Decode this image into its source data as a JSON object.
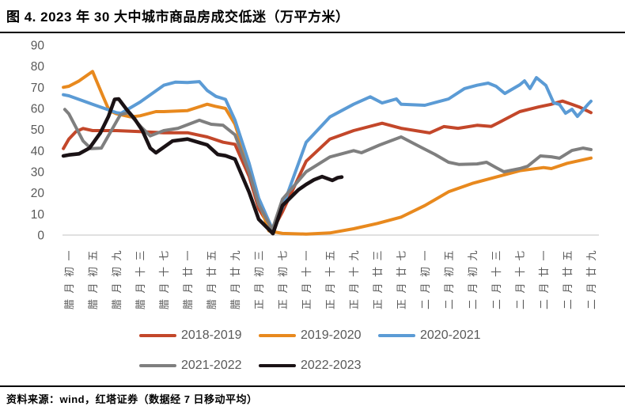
{
  "title": "图 4. 2023 年 30 大中城市商品房成交低迷（万平方米）",
  "source": "资料来源：wind，红塔证券（数据经 7 日移动平均）",
  "chart_data": {
    "type": "line",
    "unit": "万平方米",
    "ylim": [
      0,
      90
    ],
    "yticks": [
      0,
      10,
      20,
      30,
      40,
      50,
      60,
      70,
      80,
      90
    ],
    "grid": "baseline-only",
    "legend_position": "bottom",
    "x_axis_label_rotation": -90,
    "tick_label_color": "#595959",
    "baseline_color": "#D6D6D6",
    "categories": [
      "腊月初一",
      "腊月初五",
      "腊月初九",
      "腊月十三",
      "腊月十七",
      "腊月廿一",
      "腊月廿五",
      "腊月廿九",
      "正月初三",
      "正月初七",
      "正月十一",
      "正月十五",
      "正月十九",
      "正月廿三",
      "正月廿七",
      "二月初一",
      "二月初五",
      "二月初九",
      "二月十三",
      "二月十七",
      "二月廿一",
      "二月廿五",
      "二月廿九"
    ],
    "series": [
      {
        "name": "2018-2019",
        "color": "#C3472A",
        "line_width": 4,
        "points": [
          [
            -0.23,
            41
          ],
          [
            0,
            45.5
          ],
          [
            0.3,
            49
          ],
          [
            0.6,
            50.5
          ],
          [
            1,
            49.5
          ],
          [
            2,
            49.5
          ],
          [
            3,
            49
          ],
          [
            4,
            48.5
          ],
          [
            5,
            48.5
          ],
          [
            5.83,
            46.5
          ],
          [
            6.5,
            44
          ],
          [
            7,
            43
          ],
          [
            7.6,
            27.7
          ],
          [
            8,
            12.5
          ],
          [
            8.57,
            2
          ],
          [
            9,
            11
          ],
          [
            10,
            35
          ],
          [
            11,
            45.5
          ],
          [
            12,
            49.5
          ],
          [
            13.2,
            53
          ],
          [
            14,
            50.6
          ],
          [
            15.2,
            48.4
          ],
          [
            15.8,
            51.4
          ],
          [
            16.4,
            50.6
          ],
          [
            17.2,
            52
          ],
          [
            17.8,
            51.5
          ],
          [
            18.1,
            53.2
          ],
          [
            19,
            58.5
          ],
          [
            19.8,
            60.7
          ],
          [
            20.3,
            61.9
          ],
          [
            20.8,
            63.5
          ],
          [
            21.2,
            61.9
          ],
          [
            21.5,
            60.7
          ],
          [
            22,
            58
          ]
        ]
      },
      {
        "name": "2019-2020",
        "color": "#E8891E",
        "line_width": 4,
        "points": [
          [
            -0.23,
            70
          ],
          [
            0,
            70.5
          ],
          [
            0.43,
            73
          ],
          [
            1,
            77.5
          ],
          [
            1.43,
            66
          ],
          [
            1.7,
            59
          ],
          [
            2,
            57.5
          ],
          [
            2.6,
            56
          ],
          [
            3,
            56.5
          ],
          [
            3.67,
            58.5
          ],
          [
            4,
            58.5
          ],
          [
            5,
            59
          ],
          [
            5.83,
            62
          ],
          [
            6.17,
            61
          ],
          [
            6.6,
            60
          ],
          [
            7,
            52.5
          ],
          [
            7.6,
            31.5
          ],
          [
            8,
            16
          ],
          [
            8.43,
            2
          ],
          [
            9,
            0.8
          ],
          [
            10,
            0.5
          ],
          [
            11,
            1
          ],
          [
            12,
            3
          ],
          [
            13,
            5.5
          ],
          [
            14,
            8.5
          ],
          [
            15,
            14
          ],
          [
            16,
            20.5
          ],
          [
            17,
            24.5
          ],
          [
            18,
            27.5
          ],
          [
            19,
            30.5
          ],
          [
            20,
            32
          ],
          [
            20.33,
            31.5
          ],
          [
            21,
            34
          ],
          [
            22,
            36.5
          ]
        ]
      },
      {
        "name": "2020-2021",
        "color": "#5B9BD5",
        "line_width": 4,
        "points": [
          [
            -0.23,
            66.5
          ],
          [
            0,
            66
          ],
          [
            1,
            62
          ],
          [
            2,
            58
          ],
          [
            2.2,
            57.7
          ],
          [
            3,
            63
          ],
          [
            4,
            71
          ],
          [
            4.5,
            72.5
          ],
          [
            5,
            72.3
          ],
          [
            5.5,
            72.7
          ],
          [
            5.83,
            68.5
          ],
          [
            6.2,
            65.7
          ],
          [
            6.6,
            64.3
          ],
          [
            7,
            54.5
          ],
          [
            7.6,
            33.9
          ],
          [
            8,
            17.5
          ],
          [
            8.57,
            3
          ],
          [
            9,
            13
          ],
          [
            10,
            44
          ],
          [
            11,
            56
          ],
          [
            11.5,
            59
          ],
          [
            12,
            62
          ],
          [
            12.7,
            65.5
          ],
          [
            13.2,
            62.6
          ],
          [
            13.8,
            64.5
          ],
          [
            14,
            62
          ],
          [
            15,
            61.5
          ],
          [
            16,
            64.5
          ],
          [
            16.67,
            69.4
          ],
          [
            17.2,
            71
          ],
          [
            17.67,
            72
          ],
          [
            18,
            70.5
          ],
          [
            18.37,
            67.1
          ],
          [
            19,
            71.2
          ],
          [
            19.2,
            73.1
          ],
          [
            19.43,
            69.4
          ],
          [
            19.7,
            74.6
          ],
          [
            20.1,
            70.9
          ],
          [
            20.43,
            62.6
          ],
          [
            20.67,
            61.9
          ],
          [
            20.93,
            57.7
          ],
          [
            21.2,
            59.6
          ],
          [
            21.43,
            56.2
          ],
          [
            21.87,
            61.9
          ],
          [
            22,
            63.4
          ]
        ]
      },
      {
        "name": "2021-2022",
        "color": "#7F7F7F",
        "line_width": 4,
        "points": [
          [
            -0.17,
            59.5
          ],
          [
            0,
            57.5
          ],
          [
            0.6,
            44.6
          ],
          [
            0.93,
            41
          ],
          [
            1.37,
            41.2
          ],
          [
            2.17,
            57
          ],
          [
            2.5,
            58
          ],
          [
            3.03,
            51.4
          ],
          [
            3.43,
            47
          ],
          [
            4,
            49.5
          ],
          [
            4.6,
            50.6
          ],
          [
            5.5,
            54.4
          ],
          [
            6,
            52.5
          ],
          [
            6.5,
            52
          ],
          [
            7,
            47.5
          ],
          [
            7.6,
            29.6
          ],
          [
            8,
            14.5
          ],
          [
            8.57,
            2.5
          ],
          [
            9,
            17
          ],
          [
            10,
            30
          ],
          [
            11,
            37
          ],
          [
            11.5,
            38.5
          ],
          [
            12,
            40
          ],
          [
            12.33,
            39
          ],
          [
            13.1,
            42.7
          ],
          [
            14,
            46.5
          ],
          [
            14.77,
            42
          ],
          [
            15.43,
            38.2
          ],
          [
            16,
            34.5
          ],
          [
            16.43,
            33.5
          ],
          [
            17.2,
            33.7
          ],
          [
            17.6,
            34.5
          ],
          [
            18,
            32
          ],
          [
            18.33,
            30
          ],
          [
            19,
            31.5
          ],
          [
            19.33,
            32.6
          ],
          [
            19.87,
            37.5
          ],
          [
            20.33,
            37.1
          ],
          [
            20.67,
            36.4
          ],
          [
            21.2,
            40.1
          ],
          [
            21.67,
            41.2
          ],
          [
            22,
            40.5
          ]
        ]
      },
      {
        "name": "2022-2023",
        "color": "#1A1215",
        "line_width": 4.6,
        "points": [
          [
            -0.23,
            37.5
          ],
          [
            0,
            38
          ],
          [
            0.43,
            38.5
          ],
          [
            0.87,
            41.2
          ],
          [
            1.33,
            48.4
          ],
          [
            1.67,
            56.2
          ],
          [
            1.93,
            64.3
          ],
          [
            2.1,
            64.5
          ],
          [
            2.43,
            59.6
          ],
          [
            2.77,
            55.1
          ],
          [
            3.1,
            49.5
          ],
          [
            3.43,
            41.2
          ],
          [
            3.67,
            39
          ],
          [
            4.37,
            44.6
          ],
          [
            5,
            45.5
          ],
          [
            5.83,
            42.7
          ],
          [
            6.27,
            38.2
          ],
          [
            6.6,
            37.6
          ],
          [
            7,
            36
          ],
          [
            7.6,
            20.2
          ],
          [
            8,
            7.5
          ],
          [
            8.6,
            0.7
          ],
          [
            9,
            14
          ],
          [
            9.67,
            21.4
          ],
          [
            10,
            24
          ],
          [
            10.33,
            26.2
          ],
          [
            10.67,
            27.7
          ],
          [
            11.1,
            25.9
          ],
          [
            11.33,
            27.2
          ],
          [
            11.5,
            27.5
          ]
        ]
      }
    ]
  }
}
